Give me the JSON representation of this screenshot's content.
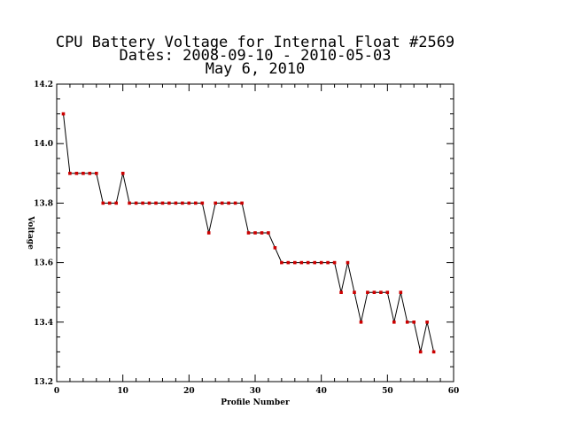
{
  "chart_data": {
    "type": "line",
    "title_lines": [
      "CPU Battery Voltage for Internal Float #2569",
      "Dates:  2008-09-10 -  2010-05-03",
      "May  6, 2010"
    ],
    "xlabel": "Profile Number",
    "ylabel": "Voltage",
    "xlim": [
      0,
      60
    ],
    "ylim": [
      13.2,
      14.2
    ],
    "xticks": [
      0,
      10,
      20,
      30,
      40,
      50,
      60
    ],
    "yticks": [
      13.2,
      13.4,
      13.6,
      13.8,
      14.0,
      14.2
    ],
    "xtick_labels": [
      "0",
      "10",
      "20",
      "30",
      "40",
      "50",
      "60"
    ],
    "ytick_labels": [
      "13.2",
      "13.4",
      "13.6",
      "13.8",
      "14.0",
      "14.2"
    ],
    "grid": false,
    "line_color": "#000000",
    "marker_color": "#cc0000",
    "x": [
      1,
      2,
      3,
      4,
      5,
      6,
      7,
      8,
      9,
      10,
      11,
      12,
      13,
      14,
      15,
      16,
      17,
      18,
      19,
      20,
      21,
      22,
      23,
      24,
      25,
      26,
      27,
      28,
      29,
      30,
      31,
      32,
      33,
      34,
      35,
      36,
      37,
      38,
      39,
      40,
      41,
      42,
      43,
      44,
      45,
      46,
      47,
      48,
      49,
      50,
      51,
      52,
      53,
      54,
      55,
      56,
      57
    ],
    "y": [
      14.1,
      13.9,
      13.9,
      13.9,
      13.9,
      13.9,
      13.8,
      13.8,
      13.8,
      13.9,
      13.8,
      13.8,
      13.8,
      13.8,
      13.8,
      13.8,
      13.8,
      13.8,
      13.8,
      13.8,
      13.8,
      13.8,
      13.7,
      13.8,
      13.8,
      13.8,
      13.8,
      13.8,
      13.7,
      13.7,
      13.7,
      13.7,
      13.65,
      13.6,
      13.6,
      13.6,
      13.6,
      13.6,
      13.6,
      13.6,
      13.6,
      13.6,
      13.5,
      13.6,
      13.5,
      13.4,
      13.5,
      13.5,
      13.5,
      13.5,
      13.4,
      13.5,
      13.4,
      13.4,
      13.3,
      13.4,
      13.3
    ]
  }
}
